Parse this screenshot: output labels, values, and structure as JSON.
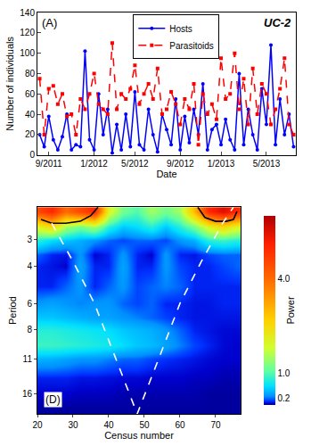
{
  "chart_data": [
    {
      "type": "line",
      "annotations": [
        "(A)",
        "UC-2"
      ],
      "xlabel": "Date",
      "ylabel": "Number of individuals",
      "categories": [
        null,
        null,
        "9/2011",
        null,
        null,
        null,
        null,
        null,
        null,
        null,
        null,
        null,
        "1/2012",
        null,
        null,
        null,
        null,
        null,
        null,
        null,
        null,
        "5/2012",
        null,
        null,
        null,
        null,
        null,
        null,
        null,
        null,
        null,
        "9/2012",
        null,
        null,
        null,
        null,
        null,
        null,
        null,
        null,
        "1/2013",
        null,
        null,
        null,
        null,
        null,
        null,
        null,
        null,
        null,
        "5/2013",
        null,
        null,
        null,
        null,
        null,
        null
      ],
      "ylim": [
        0,
        140
      ],
      "yticks": [
        0,
        20,
        40,
        60,
        80,
        100,
        120,
        140
      ],
      "legend": "top",
      "series": [
        {
          "name": "Hosts",
          "color": "#0000ff",
          "marker": "circle",
          "line_style": "solid",
          "values": [
            20,
            8,
            38,
            15,
            5,
            18,
            40,
            5,
            10,
            8,
            102,
            15,
            5,
            60,
            20,
            45,
            2,
            30,
            5,
            40,
            8,
            62,
            10,
            5,
            45,
            20,
            3,
            40,
            25,
            10,
            55,
            5,
            38,
            12,
            45,
            20,
            70,
            5,
            25,
            30,
            10,
            35,
            15,
            5,
            80,
            10,
            45,
            20,
            5,
            65,
            30,
            108,
            10,
            55,
            20,
            40,
            8
          ]
        },
        {
          "name": "Parasitoids",
          "color": "#ff0000",
          "marker": "square",
          "line_style": "dashed",
          "values": [
            75,
            20,
            65,
            68,
            50,
            60,
            38,
            40,
            20,
            55,
            45,
            60,
            80,
            50,
            45,
            40,
            110,
            45,
            60,
            55,
            65,
            88,
            50,
            60,
            70,
            55,
            85,
            40,
            45,
            62,
            50,
            30,
            55,
            45,
            70,
            10,
            60,
            40,
            50,
            35,
            95,
            55,
            60,
            100,
            45,
            75,
            30,
            85,
            40,
            70,
            60,
            30,
            45,
            65,
            95,
            30,
            20
          ]
        }
      ]
    },
    {
      "type": "heatmap",
      "annotations": [
        "(D)"
      ],
      "xlabel": "Census number",
      "ylabel": "Period",
      "log": "y",
      "x": [
        20,
        24,
        28,
        32,
        36,
        40,
        44,
        48,
        52,
        56,
        60,
        64,
        68,
        72,
        76
      ],
      "y": [
        2.2,
        2.6,
        3,
        3.5,
        4,
        5,
        6,
        7,
        8,
        9.5,
        11,
        13.5,
        16,
        19
      ],
      "cells": [
        [
          4.5,
          5,
          4,
          4.5,
          5,
          2,
          1.2,
          1,
          1.5,
          1.2,
          1.5,
          3,
          5,
          5.5,
          5
        ],
        [
          2,
          2.5,
          1.5,
          1.2,
          1.5,
          0.8,
          0.5,
          0.6,
          0.8,
          0.5,
          0.8,
          1.2,
          2,
          2.5,
          2
        ],
        [
          0.8,
          0.6,
          0.5,
          0.4,
          0.3,
          0.2,
          0.15,
          0.2,
          0.2,
          0.15,
          0.3,
          0.4,
          0.8,
          0.9,
          0.8
        ],
        [
          0.2,
          0.1,
          0.08,
          0.3,
          0.05,
          0.1,
          0.3,
          0.1,
          0.05,
          0.3,
          0.1,
          0.08,
          0.15,
          0.2,
          0.2
        ],
        [
          0.1,
          0.08,
          0.05,
          0.35,
          0.1,
          0.1,
          0.35,
          0.1,
          0.1,
          0.3,
          0.15,
          0.1,
          0.1,
          0.15,
          0.2
        ],
        [
          0.1,
          0.1,
          0.2,
          0.3,
          0.1,
          0.2,
          0.3,
          0.15,
          0.2,
          0.25,
          0.2,
          0.1,
          0.1,
          0.1,
          0.1
        ],
        [
          0.3,
          0.35,
          0.3,
          0.25,
          0.3,
          0.3,
          0.2,
          0.15,
          0.2,
          0.1,
          0.1,
          0.08,
          0.08,
          0.1,
          0.1
        ],
        [
          0.5,
          0.5,
          0.45,
          0.4,
          0.35,
          0.35,
          0.3,
          0.25,
          0.2,
          0.15,
          0.1,
          0.08,
          0.08,
          0.08,
          0.08
        ],
        [
          0.8,
          0.8,
          0.75,
          0.7,
          0.65,
          0.6,
          0.5,
          0.45,
          0.4,
          0.3,
          0.2,
          0.1,
          0.08,
          0.06,
          0.06
        ],
        [
          0.9,
          0.9,
          0.85,
          0.8,
          0.75,
          0.7,
          0.6,
          0.5,
          0.45,
          0.35,
          0.25,
          0.15,
          0.1,
          0.06,
          0.05
        ],
        [
          0.4,
          0.4,
          0.35,
          0.3,
          0.3,
          0.25,
          0.2,
          0.2,
          0.15,
          0.12,
          0.1,
          0.08,
          0.06,
          0.05,
          0.05
        ],
        [
          0.1,
          0.1,
          0.1,
          0.08,
          0.08,
          0.07,
          0.06,
          0.06,
          0.05,
          0.05,
          0.05,
          0.04,
          0.04,
          0.03,
          0.03
        ],
        [
          0.05,
          0.05,
          0.05,
          0.04,
          0.04,
          0.04,
          0.03,
          0.03,
          0.03,
          0.03,
          0.03,
          0.03,
          0.02,
          0.02,
          0.02
        ],
        [
          0.02,
          0.02,
          0.02,
          0.02,
          0.02,
          0.02,
          0.02,
          0.02,
          0.02,
          0.02,
          0.02,
          0.02,
          0.02,
          0.02,
          0.02
        ]
      ],
      "xlim": [
        20,
        77
      ],
      "xticks": [
        20,
        30,
        40,
        50,
        60,
        70
      ],
      "ylim": [
        2.1,
        20
      ],
      "yticks": [
        3,
        4,
        6,
        8,
        11,
        16
      ],
      "colorbar": {
        "title": "Power",
        "range": [
          0,
          6
        ],
        "ticks": [
          0.2,
          {
            "value": 1,
            "label": "1.0"
          },
          {
            "value": 4,
            "label": "4.0"
          }
        ]
      },
      "lines": [
        {
          "color": "#000000",
          "line_style": "solid",
          "x": [
            21,
            24,
            28,
            32,
            35,
            37,
            null,
            65,
            67,
            70,
            73,
            75,
            76
          ],
          "y": [
            2.4,
            2.5,
            2.5,
            2.45,
            2.3,
            2.1,
            null,
            2.1,
            2.35,
            2.45,
            2.45,
            2.4,
            2.2
          ]
        },
        {
          "color": "#ffffff",
          "line_style": "dashed",
          "x": [
            24,
            30,
            36,
            42,
            48,
            54,
            60,
            66,
            72,
            75
          ],
          "y": [
            2.5,
            3.8,
            6,
            11,
            20,
            11,
            6,
            3.8,
            2.5,
            2.1
          ]
        }
      ]
    }
  ]
}
